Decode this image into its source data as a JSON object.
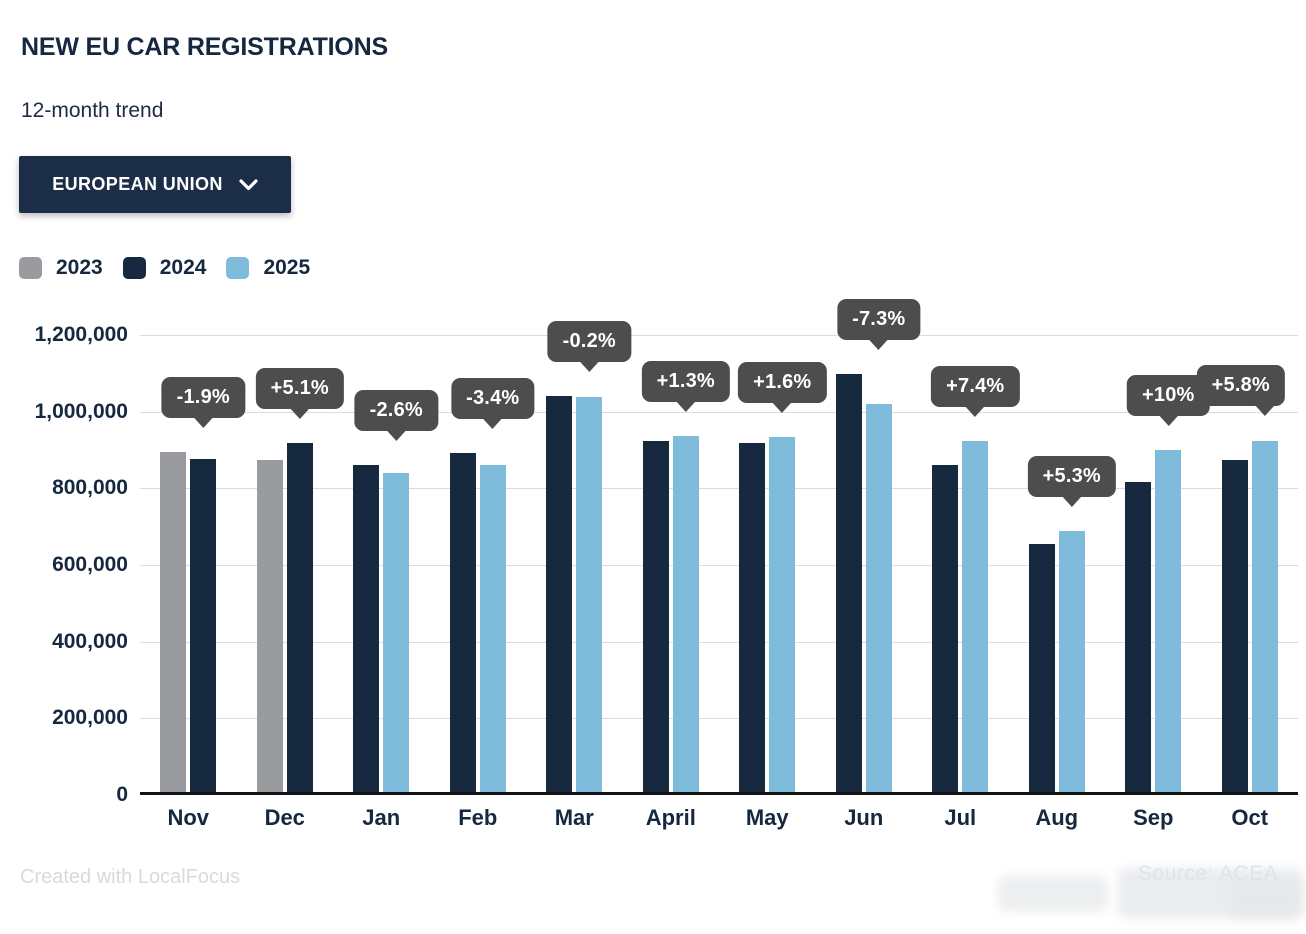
{
  "title": "NEW EU CAR REGISTRATIONS",
  "subtitle": "12-month trend",
  "dropdown": {
    "label": "EUROPEAN UNION",
    "icon": "chevron-down-icon"
  },
  "footer": {
    "credit": "Created with LocalFocus",
    "source": "Source: ACEA"
  },
  "colors": {
    "text": "#152840",
    "bar_2023": "#999b9e",
    "bar_2024": "#17293f",
    "bar_2025": "#7fbbdb",
    "tooltip_bg": "#4d4d4d",
    "gridline": "#dcdcdc",
    "axis": "#141414",
    "dropdown_bg": "#1c2e47"
  },
  "chart_data": {
    "type": "bar",
    "title": "NEW EU CAR REGISTRATIONS",
    "subtitle": "12-month trend",
    "categories": [
      "Nov",
      "Dec",
      "Jan",
      "Feb",
      "Mar",
      "April",
      "May",
      "Jun",
      "Jul",
      "Aug",
      "Sep",
      "Oct"
    ],
    "series": [
      {
        "name": "2023",
        "color": "#999b9e",
        "values": [
          887000,
          867000,
          null,
          null,
          null,
          null,
          null,
          null,
          null,
          null,
          null,
          null
        ]
      },
      {
        "name": "2024",
        "color": "#17293f",
        "values": [
          870000,
          911000,
          853000,
          884000,
          1032000,
          917000,
          911000,
          1090000,
          852000,
          646000,
          810000,
          867000
        ]
      },
      {
        "name": "2025",
        "color": "#7fbbdb",
        "values": [
          null,
          null,
          831000,
          854000,
          1030000,
          929000,
          926000,
          1011000,
          915000,
          680000,
          891000,
          917000
        ]
      }
    ],
    "pct_labels": [
      "-1.9%",
      "+5.1%",
      "-2.6%",
      "-3.4%",
      "-0.2%",
      "+1.3%",
      "+1.6%",
      "-7.3%",
      "+7.4%",
      "+5.3%",
      "+10%",
      "+5.8%"
    ],
    "xlabel": "",
    "ylabel": "",
    "ylim": [
      0,
      1200000
    ],
    "yticks": [
      {
        "value": 0,
        "label": "0"
      },
      {
        "value": 200000,
        "label": "200,000"
      },
      {
        "value": 400000,
        "label": "400,000"
      },
      {
        "value": 600000,
        "label": "600,000"
      },
      {
        "value": 800000,
        "label": "800,000"
      },
      {
        "value": 1000000,
        "label": "1,000,000"
      },
      {
        "value": 1200000,
        "label": "1,200,000"
      }
    ],
    "grid": true,
    "legend_position": "top-left"
  }
}
